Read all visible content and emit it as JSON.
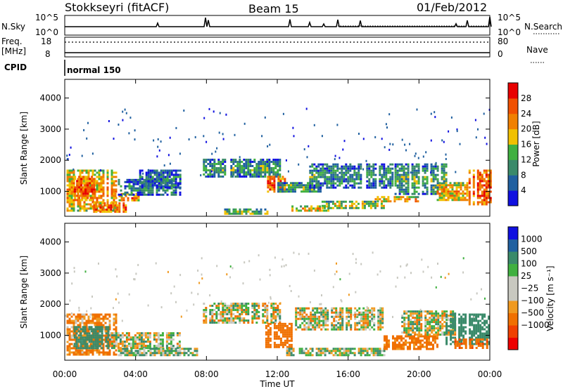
{
  "header": {
    "station": "Stokkseyri (fitACF)",
    "beam": "Beam 15",
    "date": "01/Feb/2012"
  },
  "status_panels": {
    "nsky_label": "N.Sky",
    "nsky_ticks": [
      "10^5",
      "10^0"
    ],
    "nsearch_label": "N.Search",
    "nsearch_ticks": [
      "10^5",
      "10^0"
    ],
    "freq_label_line1": "Freq.",
    "freq_label_line2": "[MHz]",
    "freq_ticks": [
      "18",
      "8"
    ],
    "nave_label": "Nave",
    "nave_ticks": [
      "80",
      "0"
    ],
    "cpid_label": "CPID",
    "cpid_value": "normal 150"
  },
  "colors": {
    "power_scale": [
      "#1010e0",
      "#2060a0",
      "#3a8a6a",
      "#40b040",
      "#f0c000",
      "#f08000",
      "#f05000",
      "#e80000"
    ],
    "velocity_scale": [
      "#ee0000",
      "#f04000",
      "#f07000",
      "#f09a20",
      "#c8c8c0",
      "#c8c8c0",
      "#40b040",
      "#3a8a6a",
      "#2060a0",
      "#1010e0"
    ]
  },
  "chart_data": [
    {
      "type": "heatmap",
      "panel": "power",
      "ylabel": "Slant Range [km]",
      "ylim": [
        200,
        4600
      ],
      "yticks": [
        "1000",
        "2000",
        "3000",
        "4000"
      ],
      "xlim": [
        0,
        24
      ],
      "colorbar_label": "Power [dB]",
      "colorbar_ticks": [
        "4",
        "8",
        "12",
        "16",
        "20",
        "24",
        "28"
      ],
      "bands": [
        {
          "t0": 0.1,
          "t1": 2.9,
          "r0": 400,
          "r1": 1700,
          "value": 22
        },
        {
          "t0": 0.4,
          "t1": 1.6,
          "r0": 700,
          "r1": 1500,
          "value": 27
        },
        {
          "t0": 1.6,
          "t1": 3.5,
          "r0": 350,
          "r1": 650,
          "value": 26
        },
        {
          "t0": 2.8,
          "t1": 4.2,
          "r0": 700,
          "r1": 950,
          "value": 23
        },
        {
          "t0": 3.0,
          "t1": 6.5,
          "r0": 900,
          "r1": 1400,
          "value": 10
        },
        {
          "t0": 4.2,
          "t1": 6.5,
          "r0": 1100,
          "r1": 1700,
          "value": 9
        },
        {
          "t0": 7.8,
          "t1": 12.2,
          "r0": 1450,
          "r1": 2050,
          "value": 12
        },
        {
          "t0": 9.0,
          "t1": 11.5,
          "r0": 250,
          "r1": 450,
          "value": 15
        },
        {
          "t0": 11.3,
          "t1": 12.6,
          "r0": 1000,
          "r1": 1500,
          "value": 26
        },
        {
          "t0": 12.0,
          "t1": 14.5,
          "r0": 1000,
          "r1": 1300,
          "value": 14
        },
        {
          "t0": 12.8,
          "t1": 15.0,
          "r0": 380,
          "r1": 550,
          "value": 21
        },
        {
          "t0": 14.5,
          "t1": 18.0,
          "r0": 450,
          "r1": 700,
          "value": 17
        },
        {
          "t0": 13.8,
          "t1": 18.5,
          "r0": 1150,
          "r1": 1900,
          "value": 11
        },
        {
          "t0": 17.5,
          "t1": 20.0,
          "r0": 650,
          "r1": 850,
          "value": 22
        },
        {
          "t0": 18.5,
          "t1": 21.5,
          "r0": 900,
          "r1": 1900,
          "value": 13
        },
        {
          "t0": 21.0,
          "t1": 22.8,
          "r0": 750,
          "r1": 1300,
          "value": 22
        },
        {
          "t0": 22.8,
          "t1": 24.0,
          "r0": 600,
          "r1": 1700,
          "value": 27
        }
      ]
    },
    {
      "type": "heatmap",
      "panel": "velocity",
      "ylabel": "Slant Range [km]",
      "ylim": [
        200,
        4600
      ],
      "yticks": [
        "1000",
        "2000",
        "3000",
        "4000"
      ],
      "xlim": [
        0,
        24
      ],
      "xticks": [
        "00:00",
        "04:00",
        "08:00",
        "12:00",
        "16:00",
        "20:00",
        "00:00"
      ],
      "xlabel": "Time UT",
      "colorbar_label": "Velocity [m s⁻¹]",
      "colorbar_ticks": [
        "1000",
        "500",
        "100",
        "25",
        "−25",
        "−100",
        "−500",
        "−1000"
      ],
      "bands": [
        {
          "t0": 0.1,
          "t1": 2.9,
          "r0": 400,
          "r1": 1700,
          "value": -150
        },
        {
          "t0": 0.5,
          "t1": 2.5,
          "r0": 600,
          "r1": 1300,
          "value": 300
        },
        {
          "t0": 2.5,
          "t1": 6.5,
          "r0": 600,
          "r1": 1100,
          "value": 0
        },
        {
          "t0": 3.0,
          "t1": 7.5,
          "r0": 350,
          "r1": 600,
          "value": 60
        },
        {
          "t0": 7.8,
          "t1": 12.2,
          "r0": 1400,
          "r1": 2050,
          "value": 0
        },
        {
          "t0": 11.2,
          "t1": 12.8,
          "r0": 600,
          "r1": 1400,
          "value": -300
        },
        {
          "t0": 12.5,
          "t1": 18.0,
          "r0": 350,
          "r1": 600,
          "value": 50
        },
        {
          "t0": 13.0,
          "t1": 18.0,
          "r0": 1200,
          "r1": 1900,
          "value": 0
        },
        {
          "t0": 18.0,
          "t1": 21.0,
          "r0": 550,
          "r1": 1000,
          "value": -200
        },
        {
          "t0": 19.0,
          "t1": 22.0,
          "r0": 1000,
          "r1": 1800,
          "value": 10
        },
        {
          "t0": 21.5,
          "t1": 24.0,
          "r0": 700,
          "r1": 1700,
          "value": 250
        },
        {
          "t0": 22.0,
          "t1": 24.0,
          "r0": 600,
          "r1": 900,
          "value": -400
        }
      ]
    }
  ]
}
